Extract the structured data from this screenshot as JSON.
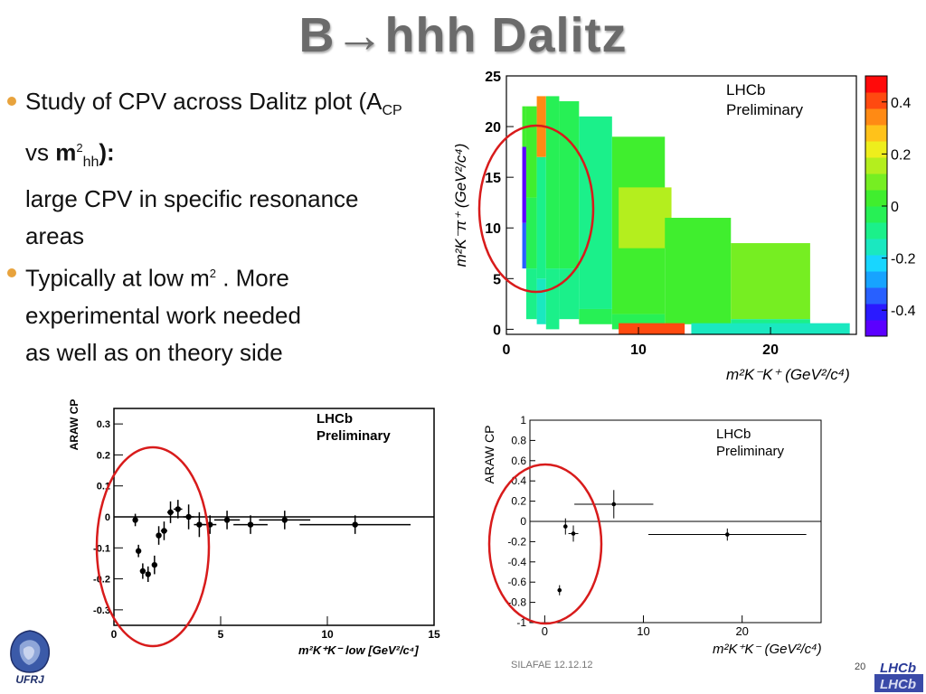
{
  "slide": {
    "title": "B→hhh Dalitz",
    "bullets": [
      {
        "line1_pre": "Study of CPV across Dalitz plot (A",
        "line1_sub": "CP",
        "line2_pre": "vs ",
        "line2_bold": "m",
        "line2_sup": "2",
        "line2_sub": "hh",
        "line2_post": "):",
        "line3": "large CPV in specific resonance",
        "line4": "areas"
      },
      {
        "line1_pre": "Typically at low m",
        "line1_sup": "2",
        "line1_post": " . More",
        "line2": "experimental work needed",
        "line3": "as well as on theory side"
      }
    ],
    "footer_date": "SILAFAE 12.12.12",
    "page_number": "20",
    "logo_left": "UFRJ",
    "logo_right": "LHCb"
  },
  "chart_data": [
    {
      "type": "heatmap",
      "label": "LHCb Preliminary",
      "label_line1": "LHCb",
      "label_line2": "Preliminary",
      "xlabel": "m²K⁻K⁺ (GeV²/c⁴)",
      "ylabel": "m²K⁻π⁺ (GeV²/c⁴)",
      "xlim": [
        0,
        26.5
      ],
      "ylim": [
        -0.5,
        25
      ],
      "x_ticks": [
        "0",
        "10",
        "20"
      ],
      "x_tick_values": [
        0,
        10,
        20
      ],
      "y_ticks": [
        "0",
        "5",
        "10",
        "15",
        "20",
        "25"
      ],
      "y_tick_values": [
        0,
        5,
        10,
        15,
        20,
        25
      ],
      "colorbar_ticks": [
        "0.4",
        "0.2",
        "0",
        "-0.2",
        "-0.4"
      ],
      "colorbar_values": [
        0.4,
        0.2,
        0,
        -0.2,
        -0.4
      ],
      "colorbar_range": [
        -0.5,
        0.5
      ],
      "colorscale": [
        "#5b00ff",
        "#2a1aff",
        "#2860ff",
        "#17a3ff",
        "#18d6ff",
        "#1ae8c0",
        "#1bf08a",
        "#27f055",
        "#40ee2e",
        "#76ee22",
        "#b4ee1e",
        "#eeee1c",
        "#ffc21a",
        "#ff8a14",
        "#ff4a10",
        "#ff0a0a"
      ],
      "cells": [
        {
          "x0": 1.2,
          "x1": 1.5,
          "y0": 10.5,
          "y1": 18,
          "z": -0.46
        },
        {
          "x0": 1.2,
          "x1": 1.5,
          "y0": 6,
          "y1": 10.5,
          "z": -0.35
        },
        {
          "x0": 1.2,
          "x1": 1.5,
          "y0": 18,
          "y1": 22,
          "z": 0.0
        },
        {
          "x0": 1.5,
          "x1": 2.3,
          "y0": 1,
          "y1": 6,
          "z": -0.1
        },
        {
          "x0": 1.5,
          "x1": 2.3,
          "y0": 6,
          "y1": 13,
          "z": -0.05
        },
        {
          "x0": 1.5,
          "x1": 2.3,
          "y0": 13,
          "y1": 22,
          "z": 0.05
        },
        {
          "x0": 2.3,
          "x1": 3.0,
          "y0": 0.5,
          "y1": 5,
          "z": -0.15
        },
        {
          "x0": 2.3,
          "x1": 3.0,
          "y0": 5,
          "y1": 17,
          "z": -0.08
        },
        {
          "x0": 2.3,
          "x1": 3.0,
          "y0": 17,
          "y1": 23,
          "z": 0.32
        },
        {
          "x0": 3.0,
          "x1": 4.0,
          "y0": 0,
          "y1": 6,
          "z": -0.12
        },
        {
          "x0": 3.0,
          "x1": 4.0,
          "y0": 6,
          "y1": 23,
          "z": -0.04
        },
        {
          "x0": 4.0,
          "x1": 5.5,
          "y0": 1,
          "y1": 6,
          "z": -0.08
        },
        {
          "x0": 4.0,
          "x1": 5.5,
          "y0": 6,
          "y1": 22.5,
          "z": -0.02
        },
        {
          "x0": 5.5,
          "x1": 8,
          "y0": 0.5,
          "y1": 2,
          "z": -0.05
        },
        {
          "x0": 5.5,
          "x1": 8,
          "y0": 2,
          "y1": 21,
          "z": -0.08
        },
        {
          "x0": 8,
          "x1": 12,
          "y0": 1.5,
          "y1": 19,
          "z": 0.02
        },
        {
          "x0": 8,
          "x1": 12,
          "y0": 0,
          "y1": 1.5,
          "z": -0.06
        },
        {
          "x0": 8.5,
          "x1": 12.5,
          "y0": 8,
          "y1": 14,
          "z": 0.18
        },
        {
          "x0": 12,
          "x1": 17,
          "y0": 0.5,
          "y1": 11,
          "z": 0.05
        },
        {
          "x0": 17,
          "x1": 23,
          "y0": 1,
          "y1": 8.5,
          "z": 0.08
        },
        {
          "x0": 17,
          "x1": 23,
          "y0": -0.2,
          "y1": 1,
          "z": -0.12
        },
        {
          "x0": 14,
          "x1": 26,
          "y0": -0.5,
          "y1": 0.6,
          "z": -0.15
        },
        {
          "x0": 8.5,
          "x1": 13.5,
          "y0": -0.5,
          "y1": 0.6,
          "z": 0.42
        }
      ]
    },
    {
      "type": "scatter",
      "label_line1": "LHCb",
      "label_line2": "Preliminary",
      "ylabel": "ARAW CP",
      "xlabel": "m²K⁺K⁻ low [GeV²/c⁴]",
      "xlim": [
        0,
        15
      ],
      "ylim": [
        -0.35,
        0.35
      ],
      "x_ticks": [
        "0",
        "5",
        "10",
        "15"
      ],
      "x_tick_values": [
        0,
        5,
        10,
        15
      ],
      "y_ticks": [
        "0.3",
        "0.2",
        "0.1",
        "0",
        "-0.1",
        "-0.2",
        "-0.3"
      ],
      "y_tick_values": [
        0.3,
        0.2,
        0.1,
        0,
        -0.1,
        -0.2,
        -0.3
      ],
      "points": [
        {
          "x": 1.0,
          "y": -0.01,
          "xerr": 0.1,
          "yerr": 0.02
        },
        {
          "x": 1.15,
          "y": -0.11,
          "xerr": 0.1,
          "yerr": 0.02
        },
        {
          "x": 1.35,
          "y": -0.175,
          "xerr": 0.1,
          "yerr": 0.025
        },
        {
          "x": 1.6,
          "y": -0.185,
          "xerr": 0.1,
          "yerr": 0.025
        },
        {
          "x": 1.9,
          "y": -0.155,
          "xerr": 0.1,
          "yerr": 0.03
        },
        {
          "x": 2.1,
          "y": -0.06,
          "xerr": 0.1,
          "yerr": 0.03
        },
        {
          "x": 2.35,
          "y": -0.045,
          "xerr": 0.15,
          "yerr": 0.03
        },
        {
          "x": 2.65,
          "y": 0.015,
          "xerr": 0.15,
          "yerr": 0.035
        },
        {
          "x": 3.0,
          "y": 0.025,
          "xerr": 0.2,
          "yerr": 0.03
        },
        {
          "x": 3.5,
          "y": 0.0,
          "xerr": 0.25,
          "yerr": 0.04
        },
        {
          "x": 4.0,
          "y": -0.025,
          "xerr": 0.25,
          "yerr": 0.04
        },
        {
          "x": 4.5,
          "y": -0.025,
          "xerr": 0.3,
          "yerr": 0.03
        },
        {
          "x": 5.3,
          "y": -0.01,
          "xerr": 0.6,
          "yerr": 0.03
        },
        {
          "x": 6.4,
          "y": -0.025,
          "xerr": 0.8,
          "yerr": 0.03
        },
        {
          "x": 8.0,
          "y": -0.01,
          "xerr": 1.2,
          "yerr": 0.03
        },
        {
          "x": 11.3,
          "y": -0.025,
          "xerr": 2.6,
          "yerr": 0.03
        }
      ]
    },
    {
      "type": "scatter",
      "label_line1": "LHCb",
      "label_line2": "Preliminary",
      "ylabel": "ARAW CP",
      "xlabel": "m²K⁺K⁻ (GeV²/c⁴)",
      "xlim": [
        -1.5,
        28
      ],
      "ylim": [
        -1,
        1
      ],
      "x_ticks": [
        "0",
        "10",
        "20"
      ],
      "x_tick_values": [
        0,
        10,
        20
      ],
      "y_ticks": [
        "1",
        "0.8",
        "0.6",
        "0.4",
        "0.2",
        "0",
        "-0.2",
        "-0.4",
        "-0.6",
        "-0.8",
        "-1"
      ],
      "y_tick_values": [
        1,
        0.8,
        0.6,
        0.4,
        0.2,
        0,
        -0.2,
        -0.4,
        -0.6,
        -0.8,
        -1
      ],
      "points": [
        {
          "x": 1.5,
          "y": -0.68,
          "xerr": 0.15,
          "yerr": 0.05
        },
        {
          "x": 2.1,
          "y": -0.05,
          "xerr": 0.15,
          "yerr": 0.08
        },
        {
          "x": 2.9,
          "y": -0.12,
          "xerr": 0.5,
          "yerr": 0.08
        },
        {
          "x": 7.0,
          "y": 0.17,
          "xerr": 4.0,
          "yerr": 0.14
        },
        {
          "x": 18.5,
          "y": -0.13,
          "xerr": 8.0,
          "yerr": 0.06
        }
      ]
    }
  ]
}
